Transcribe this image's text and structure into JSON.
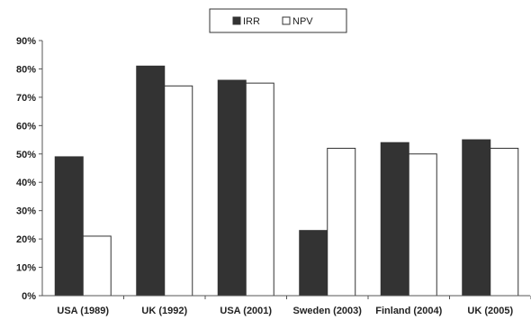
{
  "chart_data": {
    "type": "bar",
    "categories": [
      "USA (1989)",
      "UK (1992)",
      "USA (2001)",
      "Sweden (2003)",
      "Finland (2004)",
      "UK (2005)"
    ],
    "series": [
      {
        "name": "IRR",
        "values": [
          49,
          81,
          76,
          23,
          54,
          55
        ],
        "color": "#333333"
      },
      {
        "name": "NPV",
        "values": [
          21,
          74,
          75,
          52,
          50,
          52
        ],
        "color": "#ffffff"
      }
    ],
    "y_ticks": [
      "0%",
      "10%",
      "20%",
      "30%",
      "40%",
      "50%",
      "60%",
      "70%",
      "80%",
      "90%"
    ],
    "ylim": [
      0,
      90
    ],
    "y_unit": "%",
    "grid": false,
    "legend_position": "top-center",
    "title": "",
    "xlabel": "",
    "ylabel": ""
  }
}
